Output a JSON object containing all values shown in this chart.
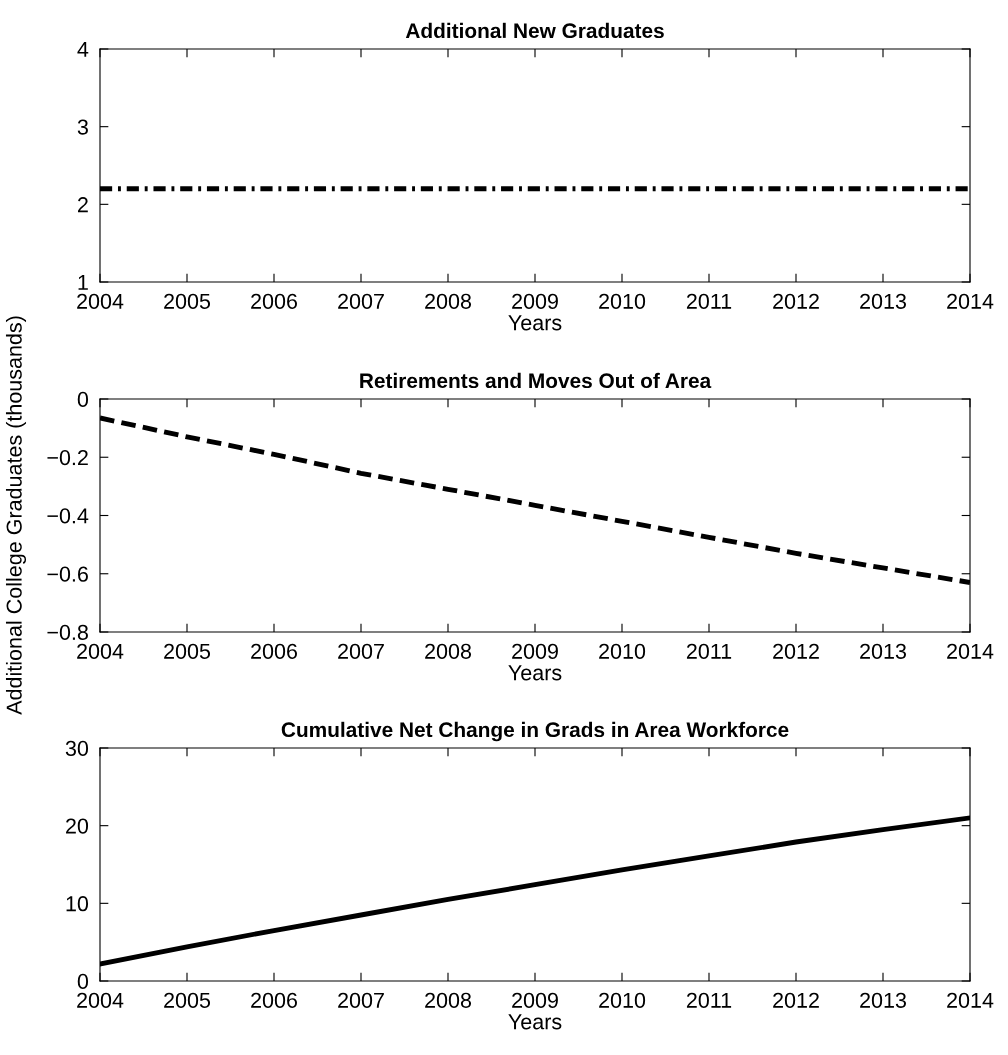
{
  "chart_data": [
    {
      "type": "line",
      "title": "Additional New Graduates",
      "xlabel": "Years",
      "x": [
        2004,
        2014
      ],
      "series": [
        {
          "color": "#000000",
          "values": [
            2.2,
            2.2
          ],
          "line_style": "dashdot"
        }
      ],
      "xlim": [
        2004,
        2014
      ],
      "xticks": [
        2004,
        2005,
        2006,
        2007,
        2008,
        2009,
        2010,
        2011,
        2012,
        2013,
        2014
      ],
      "ylim": [
        1,
        4
      ],
      "yticks": [
        1,
        2,
        3,
        4
      ],
      "grid": false,
      "legend": false
    },
    {
      "type": "line",
      "title": "Retirements and Moves Out of Area",
      "xlabel": "Years",
      "ylabel": "Additional College Graduates (thousands)",
      "x": [
        2004,
        2005,
        2006,
        2007,
        2008,
        2009,
        2010,
        2011,
        2012,
        2013,
        2014
      ],
      "series": [
        {
          "color": "#000000",
          "values": [
            -0.065,
            -0.13,
            -0.19,
            -0.255,
            -0.31,
            -0.365,
            -0.42,
            -0.475,
            -0.53,
            -0.58,
            -0.63
          ],
          "line_style": "dashed"
        }
      ],
      "xlim": [
        2004,
        2014
      ],
      "xticks": [
        2004,
        2005,
        2006,
        2007,
        2008,
        2009,
        2010,
        2011,
        2012,
        2013,
        2014
      ],
      "ylim": [
        -0.8,
        0
      ],
      "yticks": [
        -0.8,
        -0.6,
        -0.4,
        -0.2,
        0
      ],
      "grid": false,
      "legend": false
    },
    {
      "type": "line",
      "title": "Cumulative Net Change in Grads in Area Workforce",
      "xlabel": "Years",
      "x": [
        2004,
        2005,
        2006,
        2007,
        2008,
        2009,
        2010,
        2011,
        2012,
        2013,
        2014
      ],
      "series": [
        {
          "color": "#000000",
          "values": [
            2.2,
            4.4,
            6.5,
            8.5,
            10.5,
            12.4,
            14.3,
            16.1,
            17.9,
            19.5,
            21.0
          ],
          "line_style": "solid"
        }
      ],
      "xlim": [
        2004,
        2014
      ],
      "xticks": [
        2004,
        2005,
        2006,
        2007,
        2008,
        2009,
        2010,
        2011,
        2012,
        2013,
        2014
      ],
      "ylim": [
        0,
        30
      ],
      "yticks": [
        0,
        10,
        20,
        30
      ],
      "grid": false,
      "legend": false
    }
  ]
}
